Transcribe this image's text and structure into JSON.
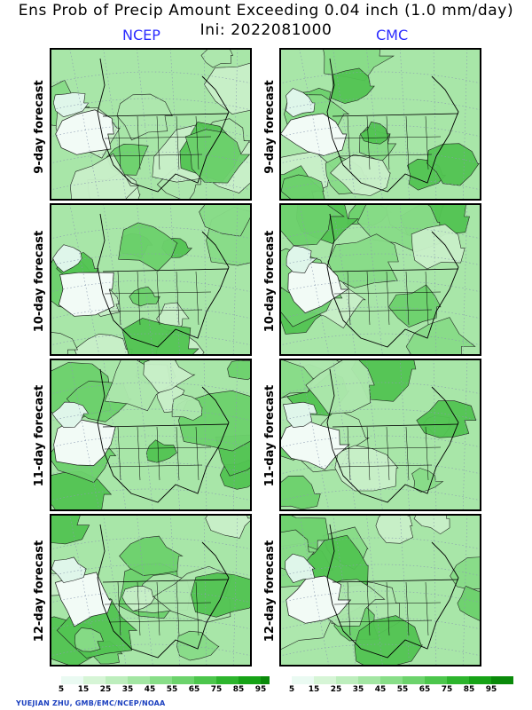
{
  "header": {
    "title": "Ens Prob of Precip Amount Exceeding 0.04 inch (1.0 mm/day)",
    "init": "Ini: 2022081000"
  },
  "columns": [
    "NCEP",
    "CMC"
  ],
  "rows": [
    "9-day forecast",
    "10-day forecast",
    "11-day forecast",
    "12-day forecast"
  ],
  "legend": {
    "labels": [
      "5",
      "15",
      "25",
      "35",
      "45",
      "55",
      "65",
      "75",
      "85",
      "95"
    ],
    "colors": [
      "#ffffff",
      "#eafaf2",
      "#d6f5d6",
      "#bdeebd",
      "#a3e6a3",
      "#88de88",
      "#6cd36c",
      "#4cc64c",
      "#2db52d",
      "#16a316",
      "#0a8a0a"
    ]
  },
  "credit": "YUEJIAN ZHU, GMB/EMC/NCEP/NOAA"
}
